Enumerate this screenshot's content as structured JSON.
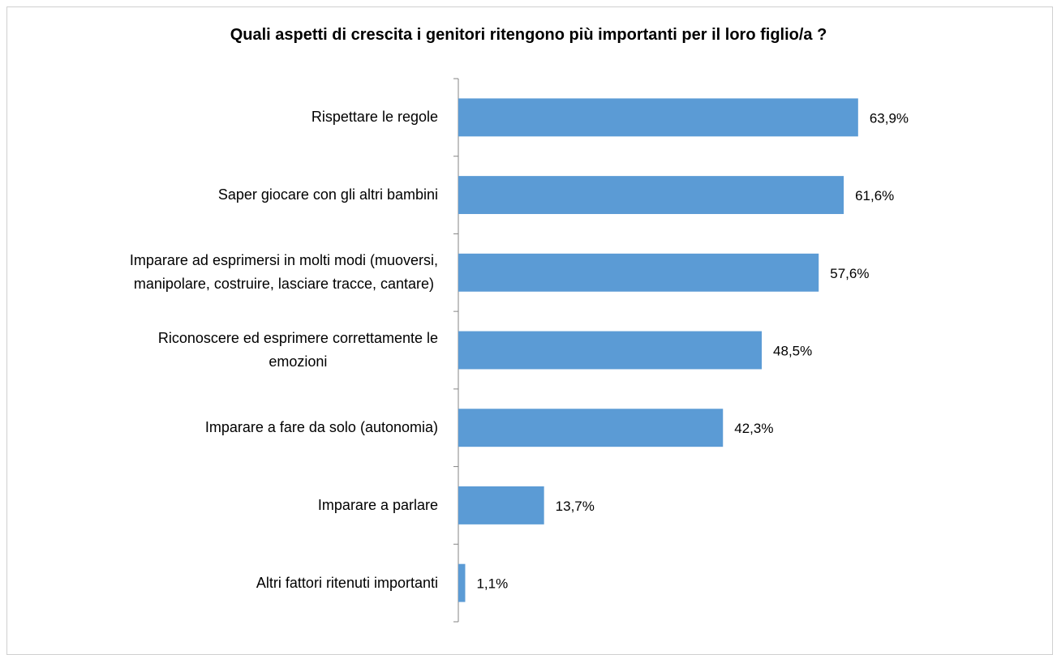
{
  "chart_data": {
    "type": "bar",
    "orientation": "horizontal",
    "title": "Quali aspetti di crescita i genitori ritengono più importanti per il loro figlio/a ?",
    "categories": [
      "Rispettare le regole",
      "Saper giocare con gli altri bambini",
      "Imparare ad esprimersi in molti modi (muoversi,\nmanipolare, costruire, lasciare tracce, cantare)",
      "Riconoscere ed esprimere correttamente le\nemozioni",
      "Imparare a fare da solo (autonomia)",
      "Imparare a parlare",
      "Altri fattori ritenuti importanti"
    ],
    "values": [
      63.9,
      61.6,
      57.6,
      48.5,
      42.3,
      13.7,
      1.1
    ],
    "value_labels": [
      "63,9%",
      "61,6%",
      "57,6%",
      "48,5%",
      "42,3%",
      "13,7%",
      "1,1%"
    ],
    "color": "#5b9bd5",
    "xlim": [
      0,
      80
    ]
  }
}
